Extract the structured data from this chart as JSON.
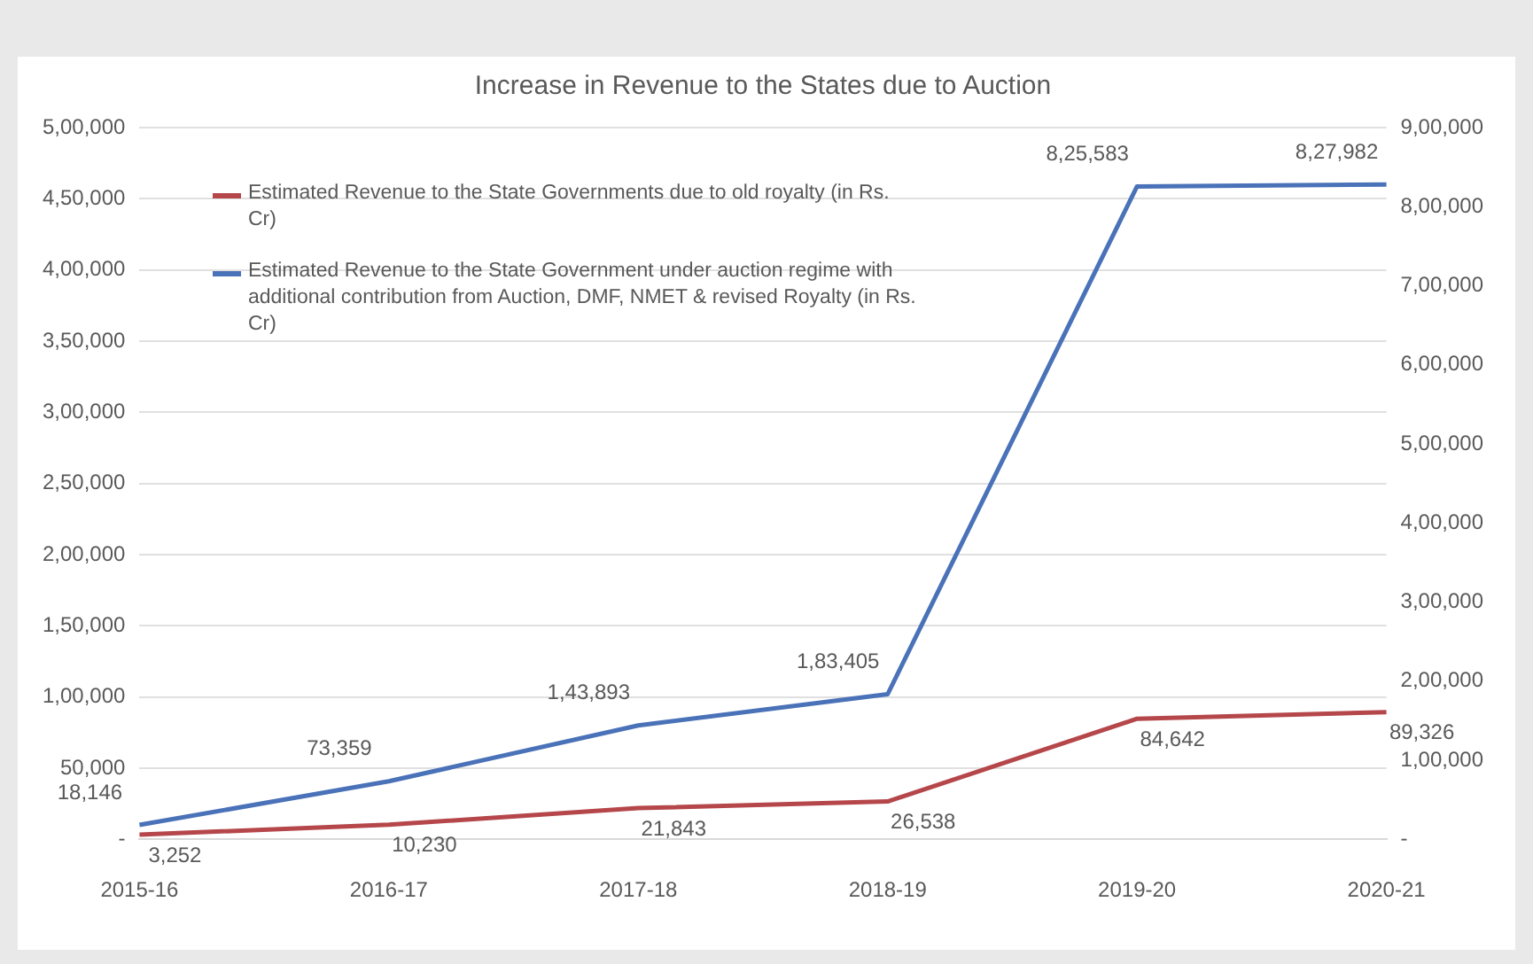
{
  "chart_data": {
    "type": "line",
    "title": "Increase in Revenue to the States due to Auction",
    "categories": [
      "2015-16",
      "2016-17",
      "2017-18",
      "2018-19",
      "2019-20",
      "2020-21"
    ],
    "series": [
      {
        "name": "Estimated Revenue to the State Governments due to old royalty (in Rs. Cr)",
        "color": "#b5474b",
        "values": [
          3252,
          10230,
          21843,
          26538,
          84642,
          89326
        ],
        "value_labels": [
          "3,252",
          "10,230",
          "21,843",
          "26,538",
          "84,642",
          "89,326"
        ]
      },
      {
        "name": "Estimated Revenue to the State Government under auction regime with additional contribution from Auction, DMF, NMET & revised Royalty (in Rs. Cr)",
        "color": "#4a72b8",
        "axis": "y2",
        "values": [
          18146,
          73359,
          143893,
          183405,
          825583,
          827982
        ],
        "value_labels": [
          "18,146",
          "73,359",
          "1,43,893",
          "1,83,405",
          "8,25,583",
          "8,27,982"
        ]
      }
    ],
    "ylim": [
      0,
      500000
    ],
    "yticks": [
      {
        "value": 0,
        "label": "-"
      },
      {
        "value": 50000,
        "label": "50,000"
      },
      {
        "value": 100000,
        "label": "1,00,000"
      },
      {
        "value": 150000,
        "label": "1,50,000"
      },
      {
        "value": 200000,
        "label": "2,00,000"
      },
      {
        "value": 250000,
        "label": "2,50,000"
      },
      {
        "value": 300000,
        "label": "3,00,000"
      },
      {
        "value": 350000,
        "label": "3,50,000"
      },
      {
        "value": 400000,
        "label": "4,00,000"
      },
      {
        "value": 450000,
        "label": "4,50,000"
      },
      {
        "value": 500000,
        "label": "5,00,000"
      }
    ],
    "y2lim": [
      0,
      900000
    ],
    "y2ticks": [
      {
        "value": 0,
        "label": "-"
      },
      {
        "value": 100000,
        "label": "1,00,000"
      },
      {
        "value": 200000,
        "label": "2,00,000"
      },
      {
        "value": 300000,
        "label": "3,00,000"
      },
      {
        "value": 400000,
        "label": "4,00,000"
      },
      {
        "value": 500000,
        "label": "5,00,000"
      },
      {
        "value": 600000,
        "label": "6,00,000"
      },
      {
        "value": 700000,
        "label": "7,00,000"
      },
      {
        "value": 800000,
        "label": "8,00,000"
      },
      {
        "value": 900000,
        "label": "9,00,000"
      }
    ],
    "grid": "y",
    "legend": "top left",
    "marker": "none",
    "line_style": "solid"
  }
}
